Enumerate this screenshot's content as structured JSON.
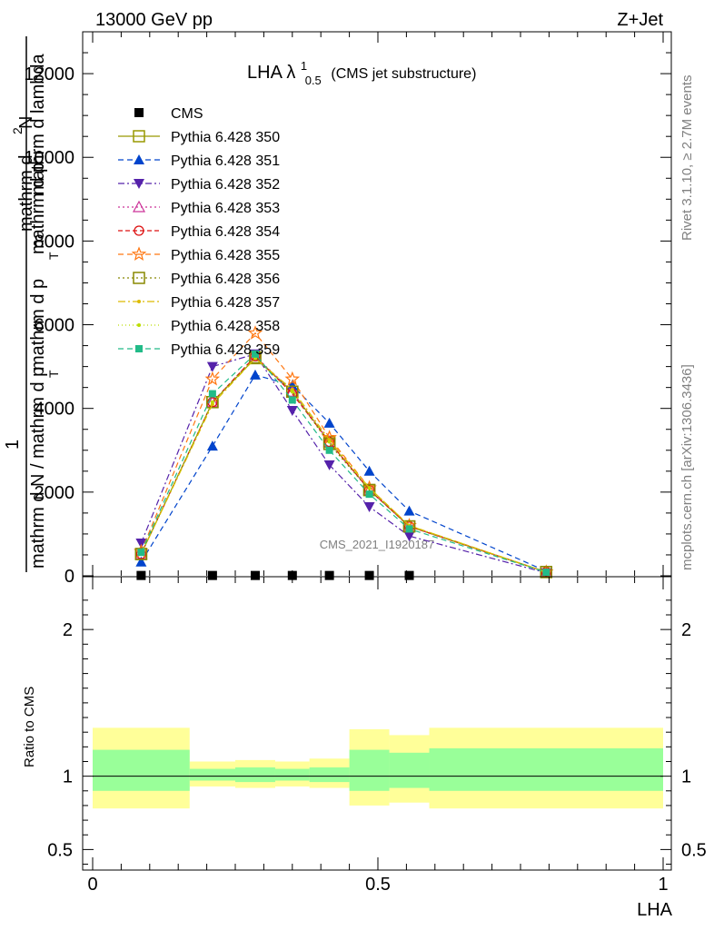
{
  "header": {
    "energy": "13000 GeV pp",
    "process": "Z+Jet"
  },
  "side": {
    "rivet": "Rivet 3.1.10, ≥ 2.7M events",
    "mcplots": "mcplots.cern.ch [arXiv:1306.3436]"
  },
  "colors": {
    "band_outer": "#ffff99",
    "band_inner": "#99ff99",
    "cms": "#000000"
  },
  "chart_data": [
    {
      "type": "line",
      "title": "LHA λ",
      "title_sup": "1",
      "title_sub": "0.5",
      "title_note": "(CMS jet substructure)",
      "ylabel_parts": [
        "1",
        "mathrm d N / mathrm d p",
        "T",
        "mathrm d p",
        "mathrm d lambda",
        "mathrm d",
        "2",
        "N",
        "T"
      ],
      "ylabel_overlay": "mathrm d p",
      "xlim": [
        0,
        1
      ],
      "ylim": [
        0,
        13000
      ],
      "yticks": [
        0,
        2000,
        4000,
        6000,
        8000,
        10000,
        12000
      ],
      "watermark": "CMS_2021_I1920187",
      "x": [
        0.085,
        0.21,
        0.285,
        0.35,
        0.415,
        0.485,
        0.555,
        0.795
      ],
      "series": [
        {
          "name": "CMS",
          "color": "#000000",
          "marker": "square",
          "dash": "",
          "values": [
            8,
            8,
            8,
            8,
            8,
            8,
            8,
            null
          ]
        },
        {
          "name": "Pythia 6.428 350",
          "color": "#999900",
          "marker": "open-square",
          "dash": "",
          "values": [
            520,
            4150,
            5200,
            4400,
            3200,
            2050,
            1180,
            90
          ]
        },
        {
          "name": "Pythia 6.428 351",
          "color": "#0044cc",
          "marker": "triangle-up",
          "dash": "6,4",
          "values": [
            330,
            3100,
            4800,
            4550,
            3650,
            2500,
            1550,
            110
          ]
        },
        {
          "name": "Pythia 6.428 352",
          "color": "#5522aa",
          "marker": "triangle-down",
          "dash": "7,3,2,3",
          "values": [
            780,
            5000,
            5300,
            3950,
            2650,
            1650,
            950,
            70
          ]
        },
        {
          "name": "Pythia 6.428 353",
          "color": "#cc3399",
          "marker": "open-triangle",
          "dash": "2,3",
          "values": [
            520,
            4150,
            5250,
            4400,
            3200,
            2050,
            1180,
            90
          ]
        },
        {
          "name": "Pythia 6.428 354",
          "color": "#dd1111",
          "marker": "open-circle",
          "dash": "5,3",
          "values": [
            520,
            4150,
            5250,
            4350,
            3200,
            2050,
            1180,
            90
          ]
        },
        {
          "name": "Pythia 6.428 355",
          "color": "#ff7711",
          "marker": "open-star",
          "dash": "6,4",
          "values": [
            580,
            4700,
            5800,
            4700,
            3300,
            2100,
            1200,
            90
          ]
        },
        {
          "name": "Pythia 6.428 356",
          "color": "#888800",
          "marker": "open-square",
          "dash": "2,3",
          "values": [
            520,
            4150,
            5220,
            4400,
            3150,
            2050,
            1180,
            90
          ]
        },
        {
          "name": "Pythia 6.428 357",
          "color": "#ddbb00",
          "marker": "dot",
          "dash": "8,3,2,3",
          "values": [
            520,
            4100,
            5200,
            4450,
            3250,
            2100,
            1200,
            90
          ]
        },
        {
          "name": "Pythia 6.428 358",
          "color": "#bbdd00",
          "marker": "dot",
          "dash": "1,3",
          "values": [
            520,
            4150,
            5200,
            4400,
            3200,
            2100,
            1200,
            90
          ]
        },
        {
          "name": "Pythia 6.428 359",
          "color": "#22bb88",
          "marker": "filled-square",
          "dash": "6,4",
          "values": [
            560,
            4350,
            5300,
            4200,
            3000,
            1950,
            1120,
            85
          ]
        }
      ]
    },
    {
      "type": "area",
      "ylabel": "Ratio to CMS",
      "xlabel": "LHA",
      "xlim": [
        0,
        1
      ],
      "ylim": [
        0.36,
        2.36
      ],
      "yticks": [
        0.5,
        1,
        2
      ],
      "xticks": [
        0,
        0.5,
        1
      ],
      "xtick_labels": [
        "0",
        "0.5",
        "1"
      ],
      "ytick_labels": [
        "0.5",
        "1",
        "2"
      ],
      "reference": 1,
      "bands": [
        {
          "x0": 0.0,
          "x1": 0.17,
          "inner": [
            0.9,
            1.18
          ],
          "outer": [
            0.78,
            1.33
          ]
        },
        {
          "x0": 0.17,
          "x1": 0.25,
          "inner": [
            0.97,
            1.05
          ],
          "outer": [
            0.93,
            1.1
          ]
        },
        {
          "x0": 0.25,
          "x1": 0.32,
          "inner": [
            0.96,
            1.06
          ],
          "outer": [
            0.92,
            1.11
          ]
        },
        {
          "x0": 0.32,
          "x1": 0.38,
          "inner": [
            0.97,
            1.05
          ],
          "outer": [
            0.93,
            1.1
          ]
        },
        {
          "x0": 0.38,
          "x1": 0.45,
          "inner": [
            0.96,
            1.06
          ],
          "outer": [
            0.92,
            1.12
          ]
        },
        {
          "x0": 0.45,
          "x1": 0.52,
          "inner": [
            0.9,
            1.18
          ],
          "outer": [
            0.8,
            1.32
          ]
        },
        {
          "x0": 0.52,
          "x1": 0.59,
          "inner": [
            0.92,
            1.16
          ],
          "outer": [
            0.82,
            1.28
          ]
        },
        {
          "x0": 0.59,
          "x1": 1.0,
          "inner": [
            0.9,
            1.19
          ],
          "outer": [
            0.78,
            1.33
          ]
        }
      ]
    }
  ]
}
